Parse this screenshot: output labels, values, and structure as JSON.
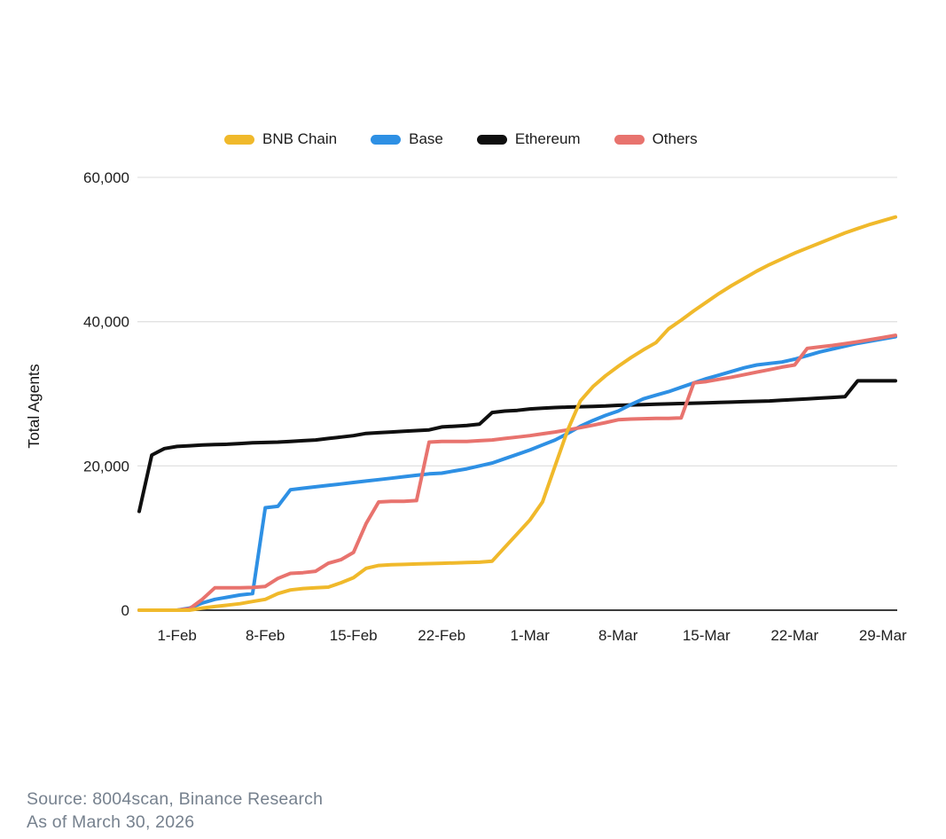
{
  "legend": {
    "items": [
      {
        "label": "BNB Chain",
        "color": "#F0B92B"
      },
      {
        "label": "Base",
        "color": "#2E90E4"
      },
      {
        "label": "Ethereum",
        "color": "#0F0F0F"
      },
      {
        "label": "Others",
        "color": "#E8736E"
      }
    ]
  },
  "source": {
    "line1": "Source: 8004scan, Binance Research",
    "line2": "As of March 30, 2026"
  },
  "chart_data": {
    "type": "line",
    "title": "",
    "xlabel": "",
    "ylabel": "Total Agents",
    "ylim": [
      0,
      60000
    ],
    "grid": "horizontal",
    "legend_position": "top",
    "colors": {
      "gridline": "#E2E2E2",
      "axis_line": "#3C3C3C",
      "tick_text": "#202020"
    },
    "y_ticks": {
      "values": [
        0,
        20000,
        40000,
        60000
      ],
      "labels": [
        "0",
        "20,000",
        "40,000",
        "60,000"
      ]
    },
    "x_ticks": {
      "day_index": [
        3,
        10,
        17,
        24,
        31,
        38,
        45,
        52,
        59
      ],
      "labels": [
        "1-Feb",
        "8-Feb",
        "15-Feb",
        "22-Feb",
        "1-Mar",
        "8-Mar",
        "15-Mar",
        "22-Mar",
        "29-Mar"
      ]
    },
    "dates": [
      "Jan 29",
      "Jan 30",
      "Jan 31",
      "Feb 1",
      "Feb 2",
      "Feb 3",
      "Feb 4",
      "Feb 5",
      "Feb 6",
      "Feb 7",
      "Feb 8",
      "Feb 9",
      "Feb 10",
      "Feb 11",
      "Feb 12",
      "Feb 13",
      "Feb 14",
      "Feb 15",
      "Feb 16",
      "Feb 17",
      "Feb 18",
      "Feb 19",
      "Feb 20",
      "Feb 21",
      "Feb 22",
      "Feb 23",
      "Feb 24",
      "Feb 25",
      "Feb 26",
      "Feb 27",
      "Feb 28",
      "Mar 1",
      "Mar 2",
      "Mar 3",
      "Mar 4",
      "Mar 5",
      "Mar 6",
      "Mar 7",
      "Mar 8",
      "Mar 9",
      "Mar 10",
      "Mar 11",
      "Mar 12",
      "Mar 13",
      "Mar 14",
      "Mar 15",
      "Mar 16",
      "Mar 17",
      "Mar 18",
      "Mar 19",
      "Mar 20",
      "Mar 21",
      "Mar 22",
      "Mar 23",
      "Mar 24",
      "Mar 25",
      "Mar 26",
      "Mar 27",
      "Mar 28",
      "Mar 29",
      "Mar 30"
    ],
    "series": [
      {
        "name": "BNB Chain",
        "color": "#F0B92B",
        "values": [
          0,
          0,
          0,
          0,
          0,
          300,
          500,
          700,
          900,
          1200,
          1500,
          2300,
          2800,
          3000,
          3100,
          3200,
          3800,
          4500,
          5800,
          6200,
          6300,
          6350,
          6400,
          6450,
          6500,
          6550,
          6600,
          6650,
          6800,
          8700,
          10600,
          12500,
          15000,
          20000,
          25000,
          29000,
          31000,
          32500,
          33800,
          35000,
          36100,
          37100,
          39000,
          40200,
          41500,
          42700,
          43900,
          45000,
          46000,
          47000,
          47900,
          48700,
          49500,
          50200,
          50900,
          51600,
          52300,
          52900,
          53500,
          54000,
          54500
        ]
      },
      {
        "name": "Base",
        "color": "#2E90E4",
        "values": [
          0,
          0,
          0,
          0,
          300,
          1000,
          1500,
          1800,
          2100,
          2300,
          14200,
          14400,
          16700,
          16900,
          17100,
          17300,
          17500,
          17700,
          17900,
          18100,
          18300,
          18500,
          18700,
          18900,
          19000,
          19300,
          19600,
          20000,
          20400,
          21000,
          21600,
          22200,
          22900,
          23600,
          24500,
          25500,
          26300,
          27000,
          27600,
          28500,
          29300,
          29800,
          30300,
          30900,
          31500,
          32100,
          32600,
          33100,
          33600,
          34000,
          34200,
          34400,
          34800,
          35300,
          35800,
          36200,
          36600,
          37000,
          37300,
          37600,
          37900
        ]
      },
      {
        "name": "Ethereum",
        "color": "#0F0F0F",
        "values": [
          13700,
          21500,
          22400,
          22700,
          22800,
          22900,
          22950,
          23000,
          23100,
          23200,
          23250,
          23300,
          23400,
          23500,
          23600,
          23800,
          24000,
          24200,
          24500,
          24600,
          24700,
          24800,
          24900,
          25000,
          25400,
          25500,
          25600,
          25800,
          27400,
          27600,
          27700,
          27900,
          28000,
          28100,
          28150,
          28200,
          28250,
          28300,
          28400,
          28450,
          28500,
          28550,
          28600,
          28650,
          28700,
          28750,
          28800,
          28850,
          28900,
          28950,
          29000,
          29100,
          29200,
          29300,
          29400,
          29500,
          29600,
          31800,
          31800,
          31800,
          31800
        ]
      },
      {
        "name": "Others",
        "color": "#E8736E",
        "values": [
          0,
          0,
          0,
          0,
          200,
          1500,
          3100,
          3100,
          3100,
          3150,
          3300,
          4400,
          5100,
          5200,
          5400,
          6500,
          7000,
          8000,
          12000,
          15000,
          15100,
          15100,
          15200,
          23300,
          23400,
          23400,
          23400,
          23500,
          23600,
          23800,
          24000,
          24200,
          24450,
          24700,
          25000,
          25300,
          25650,
          26000,
          26400,
          26500,
          26550,
          26600,
          26600,
          26650,
          31500,
          31700,
          32000,
          32300,
          32650,
          33000,
          33350,
          33700,
          34000,
          36300,
          36500,
          36700,
          36950,
          37200,
          37500,
          37800,
          38100
        ]
      }
    ],
    "draw_order": [
      2,
      1,
      3,
      0
    ]
  }
}
